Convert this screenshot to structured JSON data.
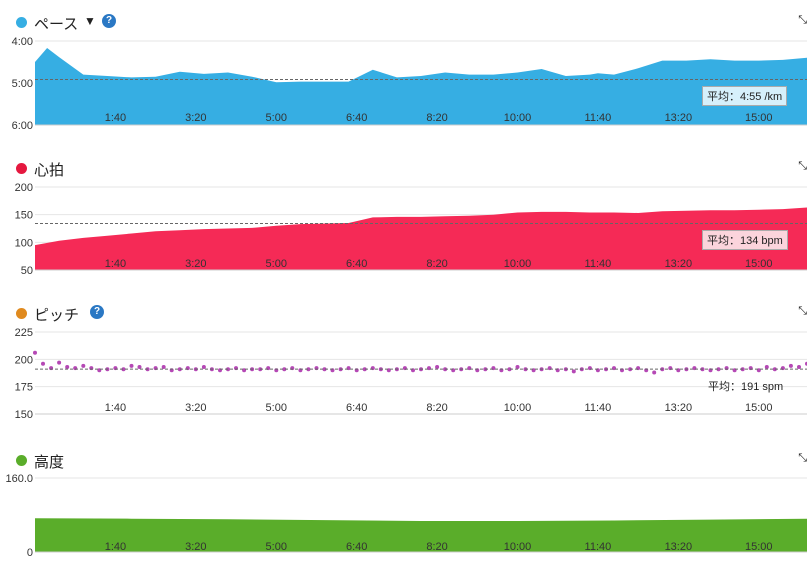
{
  "x_ticks": [
    "1:40",
    "3:20",
    "5:00",
    "6:40",
    "8:20",
    "10:00",
    "11:40",
    "13:20",
    "15:00"
  ],
  "panels": {
    "pace": {
      "title": "ペース",
      "caret": "▼",
      "help": "?",
      "color": "#36aee3",
      "y_labels": [
        "4:00",
        "5:00",
        "6:00"
      ],
      "avg_label": "平均：4:55 /km"
    },
    "hr": {
      "title": "心拍",
      "color": "#f52a56",
      "y_labels": [
        "200",
        "150",
        "100",
        "50"
      ],
      "avg_label": "平均：134 bpm"
    },
    "cadence": {
      "title": "ピッチ",
      "help": "?",
      "color": "#e08a1e",
      "point_color": "#b548b5",
      "y_labels": [
        "225",
        "200",
        "175",
        "150"
      ],
      "avg_label": "平均：191 spm"
    },
    "elev": {
      "title": "高度",
      "color": "#5aad2a",
      "y_labels": [
        "160.0",
        "0"
      ]
    }
  },
  "chart_data": [
    {
      "type": "area",
      "title": "ペース",
      "x_unit": "seconds",
      "x_ticks": [
        "1:40",
        "3:20",
        "5:00",
        "6:40",
        "8:20",
        "10:00",
        "11:40",
        "13:20",
        "15:00"
      ],
      "ylim": [
        "4:00",
        "6:00"
      ],
      "y_inverted": true,
      "average": "4:55 /km",
      "x": [
        0,
        15,
        30,
        60,
        90,
        120,
        150,
        180,
        210,
        240,
        270,
        300,
        330,
        360,
        390,
        420,
        450,
        480,
        510,
        540,
        570,
        600,
        630,
        660,
        690,
        700,
        720,
        750,
        780,
        810,
        840,
        870,
        900,
        930,
        960
      ],
      "y": [
        270,
        250,
        263,
        288,
        290,
        292,
        291,
        284,
        287,
        285,
        291,
        299,
        298,
        298,
        298,
        281,
        292,
        290,
        285,
        288,
        288,
        285,
        280,
        290,
        288,
        286,
        288,
        279,
        268,
        268,
        266,
        268,
        268,
        267,
        264
      ]
    },
    {
      "type": "area",
      "title": "心拍",
      "x_unit": "seconds",
      "x_ticks": [
        "1:40",
        "3:20",
        "5:00",
        "6:40",
        "8:20",
        "10:00",
        "11:40",
        "13:20",
        "15:00"
      ],
      "ylim": [
        50,
        200
      ],
      "average": "134 bpm",
      "x": [
        0,
        30,
        60,
        90,
        120,
        150,
        180,
        210,
        240,
        270,
        300,
        330,
        390,
        420,
        450,
        480,
        510,
        540,
        570,
        600,
        630,
        660,
        690,
        720,
        750,
        780,
        810,
        840,
        870,
        900,
        930,
        960
      ],
      "y": [
        95,
        103,
        108,
        112,
        116,
        120,
        122,
        124,
        125,
        126,
        130,
        133,
        135,
        145,
        146,
        146,
        147,
        148,
        150,
        154,
        155,
        155,
        154,
        154,
        153,
        156,
        157,
        158,
        158,
        159,
        160,
        163
      ]
    },
    {
      "type": "scatter",
      "title": "ピッチ",
      "x_unit": "seconds",
      "x_ticks": [
        "1:40",
        "3:20",
        "5:00",
        "6:40",
        "8:20",
        "10:00",
        "11:40",
        "13:20",
        "15:00"
      ],
      "ylim": [
        150,
        225
      ],
      "average": "191 spm",
      "x": [
        0,
        10,
        20,
        30,
        40,
        50,
        60,
        70,
        80,
        90,
        100,
        110,
        120,
        130,
        140,
        150,
        160,
        170,
        180,
        190,
        200,
        210,
        220,
        230,
        240,
        250,
        260,
        270,
        280,
        290,
        300,
        310,
        320,
        330,
        340,
        350,
        360,
        370,
        380,
        390,
        400,
        410,
        420,
        430,
        440,
        450,
        460,
        470,
        480,
        490,
        500,
        510,
        520,
        530,
        540,
        550,
        560,
        570,
        580,
        590,
        600,
        610,
        620,
        630,
        640,
        650,
        660,
        670,
        680,
        690,
        700,
        710,
        720,
        730,
        740,
        750,
        760,
        770,
        780,
        790,
        800,
        810,
        820,
        830,
        840,
        850,
        860,
        870,
        880,
        890,
        900,
        910,
        920,
        930,
        940,
        950,
        960
      ],
      "y": [
        206,
        196,
        192,
        197,
        193,
        192,
        194,
        192,
        190,
        191,
        192,
        191,
        194,
        193,
        191,
        192,
        193,
        190,
        191,
        192,
        191,
        193,
        191,
        190,
        191,
        192,
        190,
        191,
        191,
        192,
        190,
        191,
        192,
        190,
        191,
        192,
        191,
        190,
        191,
        192,
        190,
        191,
        192,
        191,
        190,
        191,
        192,
        190,
        191,
        192,
        193,
        191,
        190,
        191,
        192,
        190,
        191,
        192,
        190,
        191,
        193,
        191,
        190,
        191,
        192,
        190,
        191,
        189,
        191,
        192,
        190,
        191,
        192,
        190,
        191,
        192,
        190,
        188,
        191,
        192,
        190,
        191,
        192,
        191,
        190,
        191,
        192,
        190,
        191,
        192,
        190,
        193,
        191,
        192,
        194,
        193,
        196
      ]
    },
    {
      "type": "area",
      "title": "高度",
      "x_unit": "seconds",
      "x_ticks": [
        "1:40",
        "3:20",
        "5:00",
        "6:40",
        "8:20",
        "10:00",
        "11:40",
        "13:20",
        "15:00"
      ],
      "ylim": [
        0,
        160
      ],
      "x": [
        0,
        120,
        240,
        360,
        480,
        600,
        720,
        840,
        960
      ],
      "y": [
        73,
        72,
        71,
        69,
        67,
        67,
        68,
        70,
        72
      ]
    }
  ]
}
